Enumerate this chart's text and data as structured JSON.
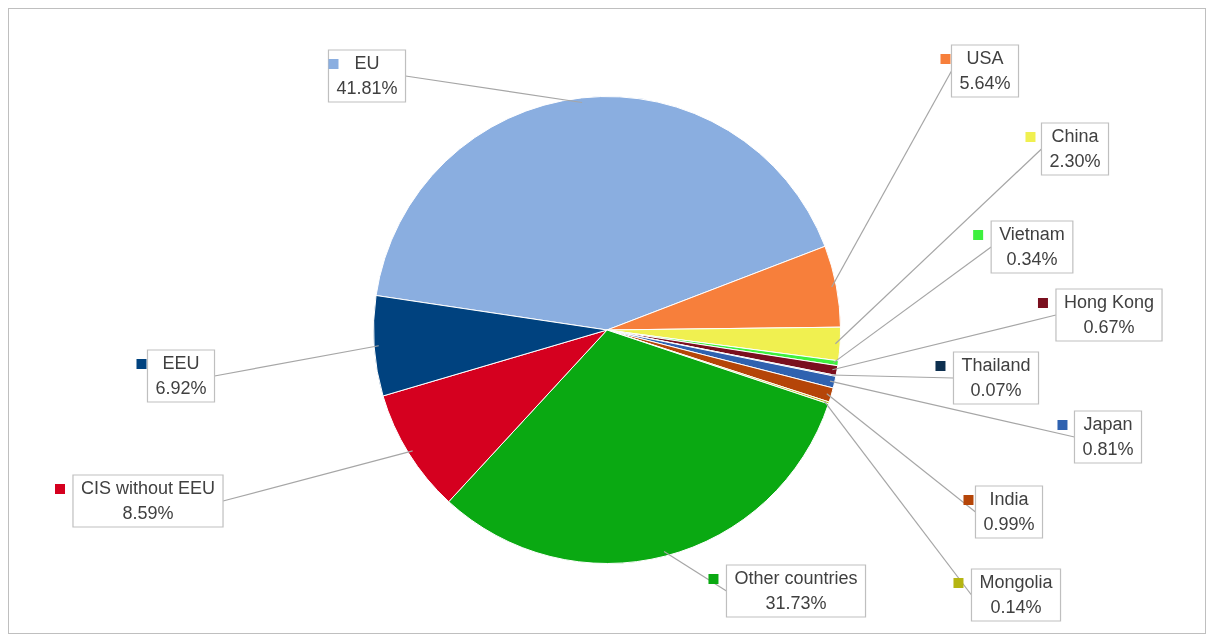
{
  "chart_data": {
    "type": "pie",
    "categories": [
      "EU",
      "USA",
      "China",
      "Vietnam",
      "Hong Kong",
      "Thailand",
      "Japan",
      "India",
      "Mongolia",
      "Other countries",
      "CIS without EEU",
      "EEU"
    ],
    "values": [
      41.81,
      5.64,
      2.3,
      0.34,
      0.67,
      0.07,
      0.81,
      0.99,
      0.14,
      31.73,
      8.59,
      6.92
    ],
    "colors": [
      "#8aaee0",
      "#f77f3b",
      "#f0f050",
      "#3ef03e",
      "#7a0f1e",
      "#0d2f4f",
      "#2f62b0",
      "#b54508",
      "#b5b512",
      "#0aa912",
      "#d5001f",
      "#00427f"
    ],
    "value_labels": [
      "41.81%",
      "5.64%",
      "2.30%",
      "0.34%",
      "0.67%",
      "0.07%",
      "0.81%",
      "0.99%",
      "0.14%",
      "31.73%",
      "8.59%",
      "6.92%"
    ],
    "legend": "right"
  }
}
